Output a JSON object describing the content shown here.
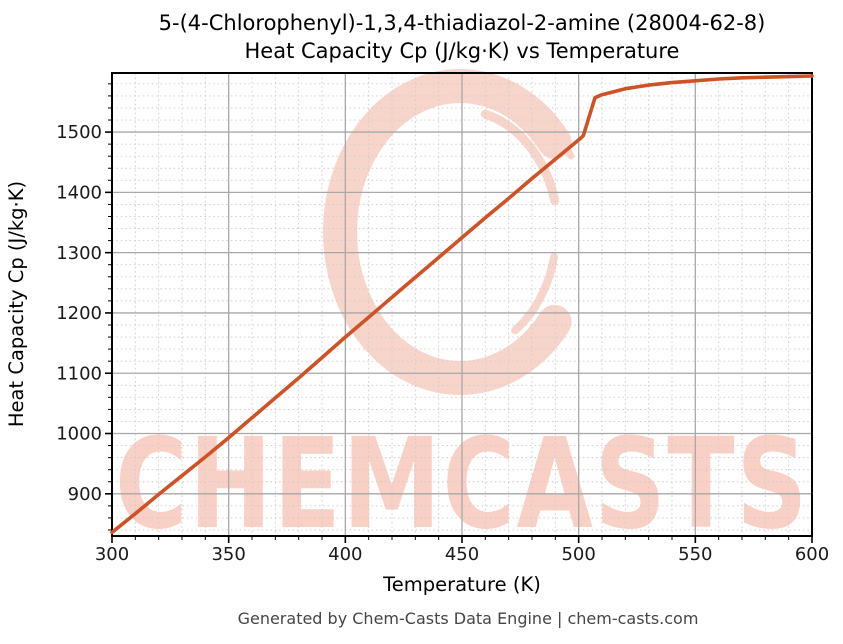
{
  "colors": {
    "line": "#cf5226",
    "watermark": "#f8d5cb",
    "watermark_text": "#f8d0c5",
    "grid_major": "#a8a8a8",
    "grid_minor": "#cccccc",
    "spine": "#000000",
    "tick": "#000000",
    "footer_text": "#454545",
    "background": "#ffffff"
  },
  "watermark": {
    "text": "CHEMCASTS"
  },
  "footer": {
    "credit": "Generated by Chem-Casts Data Engine | chem-casts.com"
  },
  "chart_data": {
    "type": "line",
    "title": "5-(4-Chlorophenyl)-1,3,4-thiadiazol-2-amine (28004-62-8)",
    "subtitle": "Heat Capacity Cp (J/kg·K) vs Temperature",
    "xlabel": "Temperature (K)",
    "ylabel": "Heat Capacity Cp (J/kg·K)",
    "xlim": [
      300,
      600
    ],
    "ylim": [
      830,
      1598
    ],
    "x_ticks": [
      300,
      350,
      400,
      450,
      500,
      550,
      600
    ],
    "y_ticks": [
      900,
      1000,
      1100,
      1200,
      1300,
      1400,
      1500
    ],
    "x_minor_step": 10,
    "y_minor_step": 20,
    "grid": "major-solid, minor-dashed",
    "legend": "none",
    "series": [
      {
        "name": "Heat Capacity Cp",
        "points": [
          [
            300,
            836
          ],
          [
            310,
            867
          ],
          [
            320,
            899
          ],
          [
            330,
            930
          ],
          [
            340,
            961
          ],
          [
            350,
            993
          ],
          [
            360,
            1026
          ],
          [
            370,
            1059
          ],
          [
            380,
            1092
          ],
          [
            390,
            1126
          ],
          [
            400,
            1160
          ],
          [
            410,
            1193
          ],
          [
            420,
            1226
          ],
          [
            430,
            1259
          ],
          [
            440,
            1292
          ],
          [
            450,
            1325
          ],
          [
            460,
            1358
          ],
          [
            470,
            1390
          ],
          [
            480,
            1423
          ],
          [
            490,
            1455
          ],
          [
            500,
            1487
          ],
          [
            502,
            1494
          ],
          [
            507,
            1557
          ],
          [
            510,
            1562
          ],
          [
            515,
            1567
          ],
          [
            520,
            1572
          ],
          [
            530,
            1578
          ],
          [
            540,
            1582
          ],
          [
            550,
            1585
          ],
          [
            560,
            1588
          ],
          [
            570,
            1590
          ],
          [
            580,
            1591
          ],
          [
            590,
            1592
          ],
          [
            600,
            1593
          ]
        ]
      }
    ],
    "annotations": [
      "solid-liquid transition step near 502-507 K"
    ]
  }
}
